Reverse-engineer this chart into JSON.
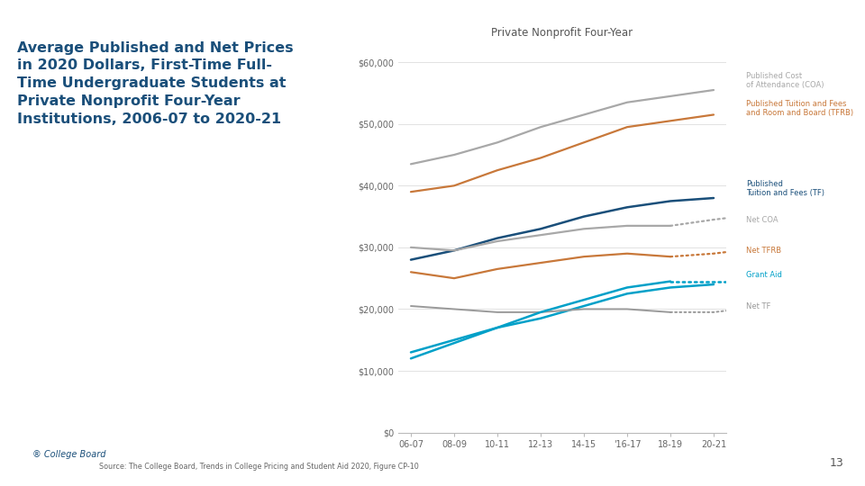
{
  "title": "Private Nonprofit Four-Year",
  "x_labels": [
    "06-07",
    "08-09",
    "10-11",
    "12-13",
    "14-15",
    "'16-17",
    "18-19",
    "20-21"
  ],
  "x_values": [
    0,
    1,
    2,
    3,
    4,
    5,
    6,
    7
  ],
  "series": {
    "Published COA": {
      "values": [
        43500,
        45000,
        47000,
        49500,
        51500,
        53500,
        54500,
        55500
      ],
      "color": "#a8a8a8",
      "linestyle": "solid",
      "linewidth": 1.6
    },
    "Published TFRB": {
      "values": [
        39000,
        40000,
        42500,
        44500,
        47000,
        49500,
        50500,
        51500
      ],
      "color": "#c8783a",
      "linestyle": "solid",
      "linewidth": 1.6
    },
    "Published TF": {
      "values": [
        28000,
        29500,
        31500,
        33000,
        35000,
        36500,
        37500,
        38000
      ],
      "color": "#1a4f7a",
      "linestyle": "solid",
      "linewidth": 1.8
    },
    "Net COA": {
      "values": [
        30000,
        29500,
        31000,
        32000,
        33000,
        33500,
        33500,
        34000
      ],
      "color": "#a8a8a8",
      "linestyle": "dotted",
      "linewidth": 1.6,
      "dotted_extend": [
        34500,
        35000
      ]
    },
    "Net TFRB": {
      "values": [
        26000,
        25000,
        26500,
        27500,
        28500,
        29000,
        28500,
        29000
      ],
      "color": "#c8783a",
      "linestyle": "dotted",
      "linewidth": 1.6,
      "dotted_extend": [
        29000,
        29500
      ]
    },
    "Grant Aid": {
      "values": [
        13000,
        15000,
        17000,
        19500,
        21500,
        23500,
        24500,
        24500
      ],
      "color": "#00a0c8",
      "linestyle": "dotted",
      "linewidth": 1.8,
      "dotted_extend": [
        24500,
        24500
      ]
    },
    "Net TF": {
      "values": [
        20500,
        20000,
        19500,
        19500,
        20000,
        20000,
        19500,
        19500
      ],
      "color": "#999999",
      "linestyle": "dotted",
      "linewidth": 1.4,
      "dotted_extend": [
        19500,
        20000
      ]
    },
    "Net TF solid": {
      "values": [
        12000,
        14500,
        17000,
        18500,
        20500,
        22500,
        23500,
        24000
      ],
      "color": "#00a0c8",
      "linestyle": "solid",
      "linewidth": 1.8
    }
  },
  "right_labels": [
    {
      "text": "Published Cost\nof Attendance (COA)",
      "color": "#a8a8a8",
      "y": 57000
    },
    {
      "text": "Published Tuition and Fees\nand Room and Board (TFRB)",
      "color": "#c8783a",
      "y": 52500
    },
    {
      "text": "Published\nTuition and Fees (TF)",
      "color": "#1a4f7a",
      "y": 39500
    },
    {
      "text": "Net COA",
      "color": "#a8a8a8",
      "y": 34500
    },
    {
      "text": "Net TFRB",
      "color": "#c8783a",
      "y": 29500
    },
    {
      "text": "Grant Aid",
      "color": "#00a0c8",
      "y": 25500
    },
    {
      "text": "Net TF",
      "color": "#999999",
      "y": 20500
    }
  ],
  "ylim": [
    0,
    63000
  ],
  "yticks": [
    0,
    10000,
    20000,
    30000,
    40000,
    50000,
    60000
  ],
  "ytick_labels": [
    "$0",
    "$10,000",
    "$20,000",
    "$30,000",
    "$40,000",
    "$50,000",
    "$60,000"
  ],
  "header_color": "#1a4f7a",
  "bg_color": "#ffffff",
  "source_text": "Source: The College Board, Trends in College Pricing and Student Aid 2020, Figure CP-10",
  "page_number": "13",
  "slide_title": "Average Published and Net Prices\nin 2020 Dollars, First-Time Full-\nTime Undergraduate Students at\nPrivate Nonprofit Four-Year\nInstitutions, 2006-07 to 2020-21",
  "top_bar_color": "#1a1a1a",
  "collegeboard_color": "#1a4f7a"
}
